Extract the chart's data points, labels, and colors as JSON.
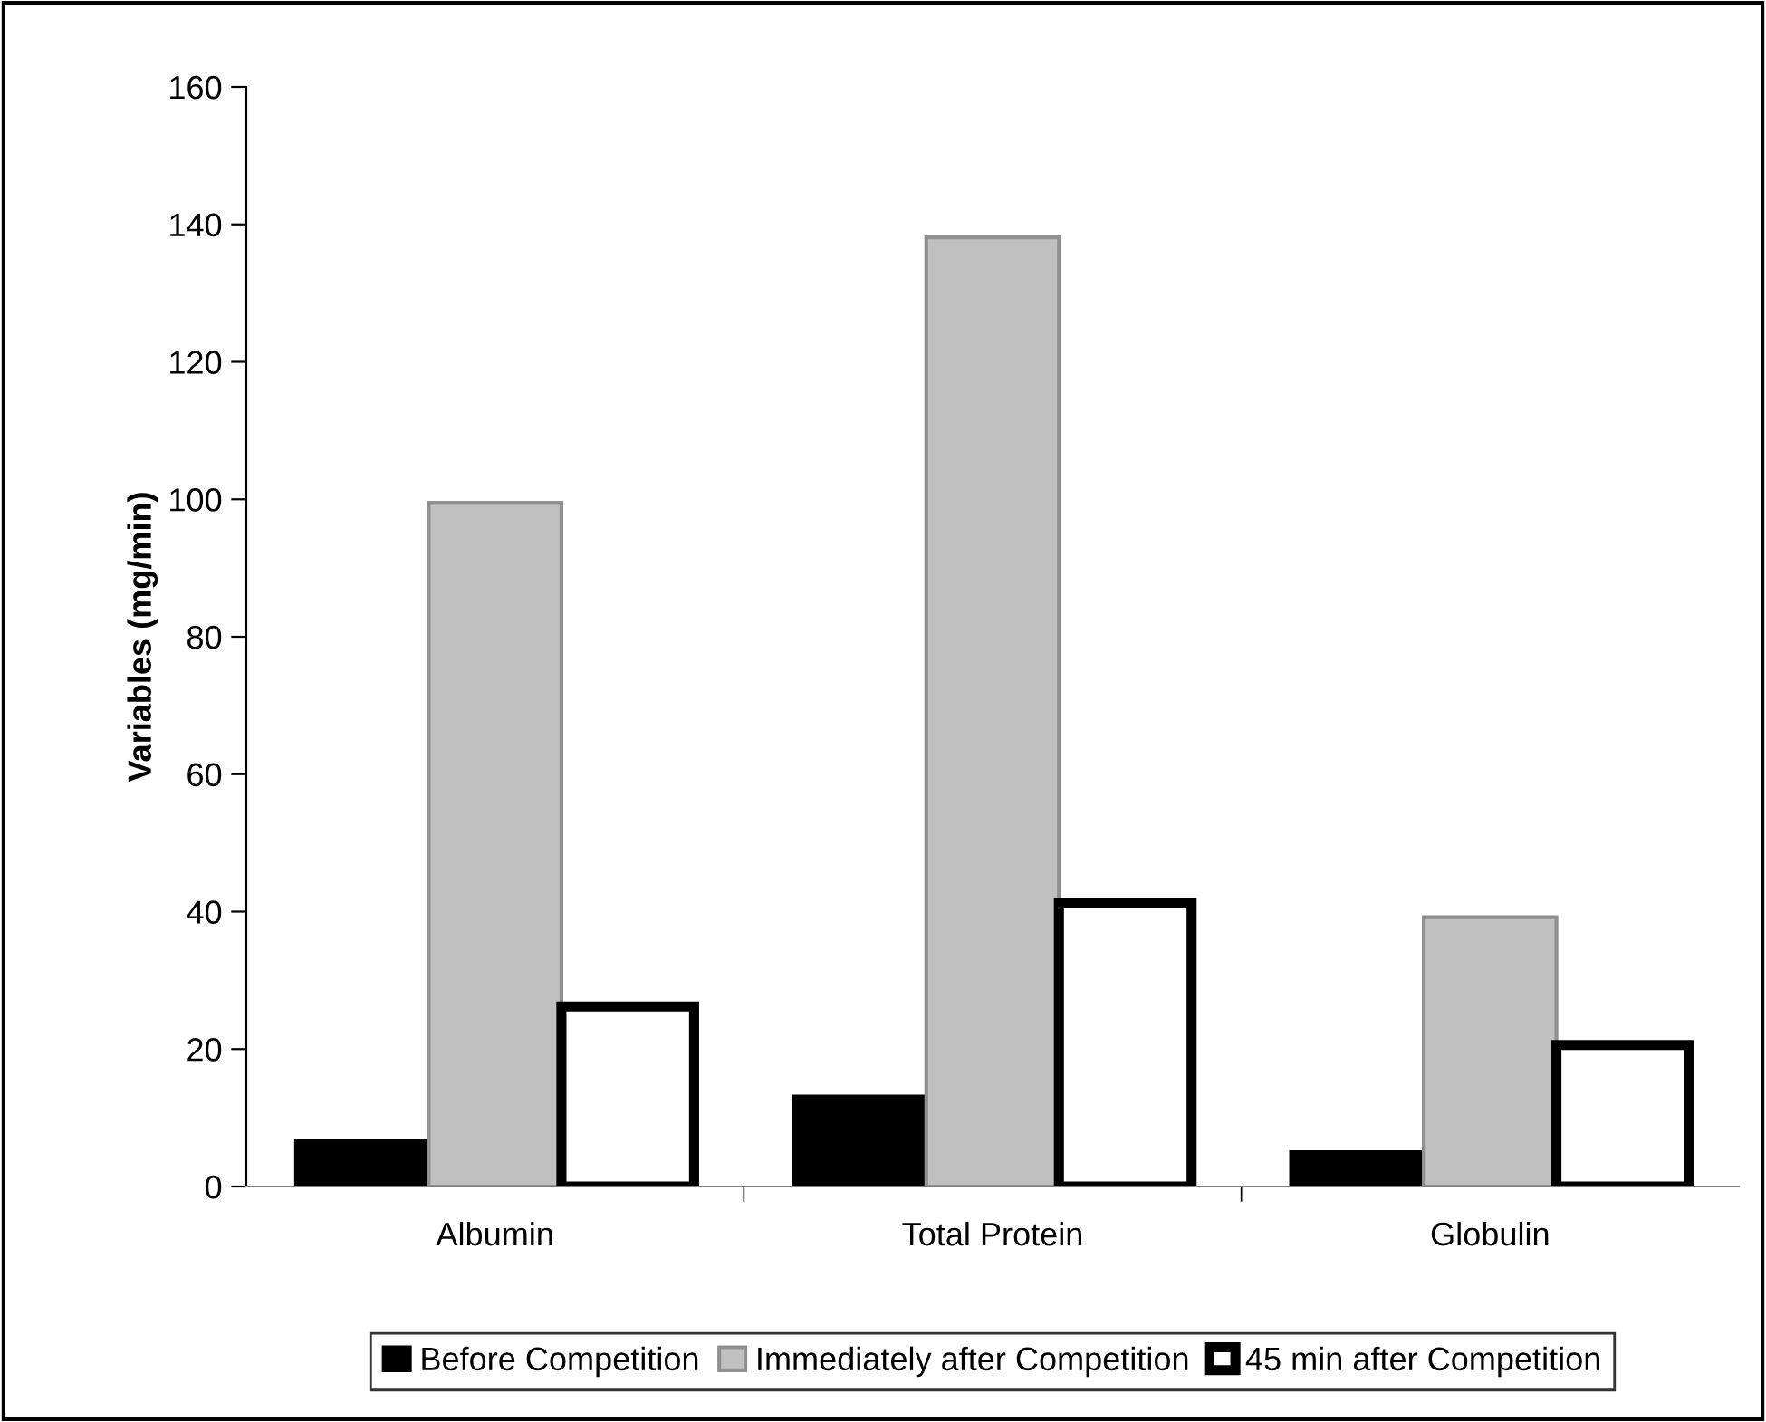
{
  "chart_data": {
    "type": "bar",
    "ylabel": "Variables (mg/min)",
    "categories": [
      "Albumin",
      "Total Protein",
      "Globulin"
    ],
    "series": [
      {
        "name": "Before Competition",
        "color": "#000000",
        "values": [
          6.7,
          13.1,
          5.0
        ]
      },
      {
        "name": "Immediately after Competition",
        "color": "#c0c0c0",
        "values": [
          99.5,
          138.1,
          39.2
        ]
      },
      {
        "name": "45 min after Competition",
        "color": "#ffffff",
        "values": [
          26.2,
          41.2,
          20.6
        ]
      }
    ],
    "ylim": [
      0,
      160
    ],
    "yticks": [
      0,
      20,
      40,
      60,
      80,
      100,
      120,
      140,
      160
    ],
    "grid": false,
    "legend": "bottom"
  }
}
